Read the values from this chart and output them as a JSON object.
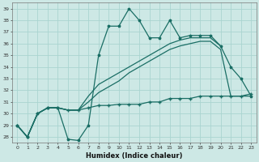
{
  "xlabel": "Humidex (Indice chaleur)",
  "bg_color": "#cde8e5",
  "grid_color": "#aad4d0",
  "line_color": "#1a6e65",
  "xlim": [
    -0.5,
    23.5
  ],
  "ylim": [
    27.5,
    39.5
  ],
  "xticks": [
    0,
    1,
    2,
    3,
    4,
    5,
    6,
    7,
    8,
    9,
    10,
    11,
    12,
    13,
    14,
    15,
    16,
    17,
    18,
    19,
    20,
    21,
    22,
    23
  ],
  "yticks": [
    28,
    29,
    30,
    31,
    32,
    33,
    34,
    35,
    36,
    37,
    38,
    39
  ],
  "series1": [
    29,
    28,
    30,
    30.5,
    30.5,
    27.8,
    27.7,
    29,
    35,
    37.5,
    37.5,
    39,
    38,
    36.5,
    36.5,
    38,
    36.5,
    36.7,
    36.7,
    36.7,
    35.8,
    34,
    33,
    31.5
  ],
  "series2": [
    29,
    28,
    30,
    30.5,
    30.5,
    30.3,
    30.3,
    30.5,
    30.7,
    30.7,
    30.8,
    30.8,
    30.8,
    31.0,
    31.0,
    31.3,
    31.3,
    31.3,
    31.5,
    31.5,
    31.5,
    31.5,
    31.5,
    31.7
  ],
  "series3_x": [
    0,
    1,
    2,
    3,
    4,
    5,
    6,
    7,
    8,
    9,
    10,
    11,
    12,
    13,
    14,
    15,
    16,
    17,
    18,
    19,
    20
  ],
  "series3_y": [
    29,
    28,
    30,
    30.5,
    30.5,
    30.3,
    30.3,
    31.5,
    32.5,
    33.0,
    33.5,
    34.0,
    34.5,
    35.0,
    35.5,
    36.0,
    36.3,
    36.5,
    36.5,
    36.5,
    35.8
  ],
  "series4_x": [
    0,
    1,
    2,
    3,
    4,
    5,
    6,
    7,
    8,
    9,
    10,
    11,
    12,
    13,
    14,
    15,
    16,
    17,
    18,
    19,
    20,
    21,
    22,
    23
  ],
  "series4_y": [
    29,
    28,
    30,
    30.5,
    30.5,
    30.3,
    30.3,
    31.0,
    31.8,
    32.3,
    32.8,
    33.5,
    34.0,
    34.5,
    35.0,
    35.5,
    35.8,
    36.0,
    36.2,
    36.2,
    35.5,
    31.5,
    31.5,
    31.5
  ]
}
